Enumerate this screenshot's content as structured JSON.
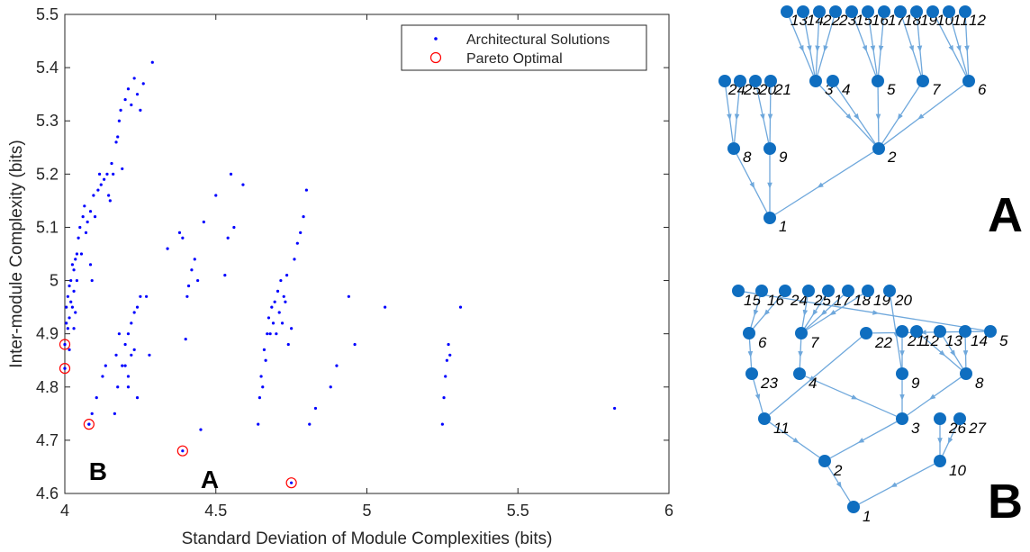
{
  "chart_data": {
    "type": "scatter",
    "xlabel": "Standard Deviation of Module Complexities (bits)",
    "ylabel": "Inter-module Complexity (bits)",
    "xlim": [
      4,
      6
    ],
    "ylim": [
      4.6,
      5.5
    ],
    "xticks": [
      "4",
      "4.5",
      "5",
      "5.5",
      "6"
    ],
    "yticks": [
      "4.6",
      "4.7",
      "4.8",
      "4.9",
      "5",
      "5.1",
      "5.2",
      "5.3",
      "5.4",
      "5.5"
    ],
    "legend_position": "top-right",
    "grid": false,
    "series": [
      {
        "name": "Architectural Solutions",
        "color": "#0000ff",
        "marker": "dot",
        "points": [
          [
            4.0,
            4.88
          ],
          [
            4.0,
            4.835
          ],
          [
            4.005,
            4.92
          ],
          [
            4.005,
            4.95
          ],
          [
            4.01,
            4.91
          ],
          [
            4.01,
            4.97
          ],
          [
            4.015,
            4.99
          ],
          [
            4.015,
            4.93
          ],
          [
            4.015,
            4.87
          ],
          [
            4.02,
            5.0
          ],
          [
            4.02,
            4.96
          ],
          [
            4.025,
            5.03
          ],
          [
            4.025,
            4.95
          ],
          [
            4.03,
            4.91
          ],
          [
            4.03,
            5.02
          ],
          [
            4.03,
            4.98
          ],
          [
            4.035,
            5.04
          ],
          [
            4.035,
            4.94
          ],
          [
            4.04,
            5.05
          ],
          [
            4.04,
            5.0
          ],
          [
            4.045,
            5.08
          ],
          [
            4.05,
            5.1
          ],
          [
            4.055,
            5.05
          ],
          [
            4.06,
            5.12
          ],
          [
            4.065,
            5.14
          ],
          [
            4.07,
            5.09
          ],
          [
            4.075,
            5.11
          ],
          [
            4.08,
            4.73
          ],
          [
            4.085,
            5.13
          ],
          [
            4.085,
            5.03
          ],
          [
            4.09,
            5.0
          ],
          [
            4.09,
            4.75
          ],
          [
            4.095,
            5.16
          ],
          [
            4.1,
            5.12
          ],
          [
            4.105,
            4.78
          ],
          [
            4.11,
            5.17
          ],
          [
            4.115,
            5.2
          ],
          [
            4.12,
            5.18
          ],
          [
            4.125,
            4.82
          ],
          [
            4.13,
            5.19
          ],
          [
            4.135,
            4.84
          ],
          [
            4.14,
            5.2
          ],
          [
            4.145,
            5.16
          ],
          [
            4.15,
            5.15
          ],
          [
            4.155,
            5.22
          ],
          [
            4.16,
            5.2
          ],
          [
            4.165,
            4.75
          ],
          [
            4.17,
            5.26
          ],
          [
            4.175,
            5.27
          ],
          [
            4.175,
            4.8
          ],
          [
            4.18,
            5.3
          ],
          [
            4.185,
            5.32
          ],
          [
            4.19,
            5.21
          ],
          [
            4.2,
            5.34
          ],
          [
            4.21,
            5.36
          ],
          [
            4.22,
            5.33
          ],
          [
            4.23,
            5.38
          ],
          [
            4.24,
            5.35
          ],
          [
            4.25,
            5.32
          ],
          [
            4.26,
            5.37
          ],
          [
            4.29,
            5.41
          ],
          [
            4.17,
            4.86
          ],
          [
            4.18,
            4.9
          ],
          [
            4.19,
            4.84
          ],
          [
            4.2,
            4.88
          ],
          [
            4.21,
            4.8
          ],
          [
            4.22,
            4.92
          ],
          [
            4.23,
            4.87
          ],
          [
            4.24,
            4.95
          ],
          [
            4.25,
            4.97
          ],
          [
            4.27,
            4.97
          ],
          [
            4.28,
            4.86
          ],
          [
            4.21,
            4.82
          ],
          [
            4.24,
            4.78
          ],
          [
            4.2,
            4.84
          ],
          [
            4.22,
            4.86
          ],
          [
            4.23,
            4.94
          ],
          [
            4.21,
            4.9
          ],
          [
            4.34,
            5.06
          ],
          [
            4.38,
            5.09
          ],
          [
            4.39,
            5.08
          ],
          [
            4.4,
            4.89
          ],
          [
            4.405,
            4.97
          ],
          [
            4.41,
            4.99
          ],
          [
            4.42,
            5.02
          ],
          [
            4.43,
            5.04
          ],
          [
            4.44,
            5.0
          ],
          [
            4.45,
            4.72
          ],
          [
            4.46,
            5.11
          ],
          [
            4.5,
            5.16
          ],
          [
            4.53,
            5.01
          ],
          [
            4.54,
            5.08
          ],
          [
            4.55,
            5.2
          ],
          [
            4.56,
            5.1
          ],
          [
            4.59,
            5.18
          ],
          [
            4.64,
            4.73
          ],
          [
            4.645,
            4.78
          ],
          [
            4.65,
            4.82
          ],
          [
            4.655,
            4.8
          ],
          [
            4.66,
            4.87
          ],
          [
            4.665,
            4.85
          ],
          [
            4.67,
            4.9
          ],
          [
            4.675,
            4.93
          ],
          [
            4.68,
            4.9
          ],
          [
            4.685,
            4.95
          ],
          [
            4.69,
            4.92
          ],
          [
            4.695,
            4.96
          ],
          [
            4.7,
            4.9
          ],
          [
            4.705,
            4.98
          ],
          [
            4.71,
            4.94
          ],
          [
            4.715,
            5.0
          ],
          [
            4.72,
            4.92
          ],
          [
            4.725,
            4.97
          ],
          [
            4.73,
            4.96
          ],
          [
            4.735,
            5.01
          ],
          [
            4.74,
            4.88
          ],
          [
            4.75,
            4.91
          ],
          [
            4.76,
            5.04
          ],
          [
            4.77,
            5.07
          ],
          [
            4.78,
            5.09
          ],
          [
            4.79,
            5.12
          ],
          [
            4.8,
            5.17
          ],
          [
            4.81,
            4.73
          ],
          [
            4.83,
            4.76
          ],
          [
            4.88,
            4.8
          ],
          [
            4.9,
            4.84
          ],
          [
            4.94,
            4.97
          ],
          [
            4.96,
            4.88
          ],
          [
            5.06,
            4.95
          ],
          [
            5.25,
            4.73
          ],
          [
            5.255,
            4.78
          ],
          [
            5.26,
            4.82
          ],
          [
            5.265,
            4.85
          ],
          [
            5.27,
            4.88
          ],
          [
            5.275,
            4.86
          ],
          [
            5.31,
            4.95
          ],
          [
            5.82,
            4.76
          ]
        ]
      },
      {
        "name": "Pareto Optimal",
        "color": "#ff0000",
        "marker": "circle",
        "points": [
          [
            4.0,
            4.88
          ],
          [
            4.0,
            4.835
          ],
          [
            4.08,
            4.73
          ],
          [
            4.39,
            4.68
          ],
          [
            4.75,
            4.62
          ]
        ]
      }
    ],
    "annotations": [
      {
        "text": "B",
        "x": 4.11,
        "y": 4.625
      },
      {
        "text": "A",
        "x": 4.48,
        "y": 4.61
      }
    ]
  },
  "trees": {
    "A": {
      "label": "A",
      "node_color": "#0f6ec0",
      "edge_color": "#6fa8dc",
      "labels": [
        "13",
        "14",
        "22",
        "23",
        "15",
        "16",
        "17",
        "18",
        "19",
        "10",
        "11",
        "12",
        "24",
        "25",
        "20",
        "21",
        "3",
        "4",
        "5",
        "7",
        "6",
        "8",
        "9",
        "2",
        "1"
      ],
      "edges": [
        [
          0,
          16
        ],
        [
          1,
          16
        ],
        [
          2,
          16
        ],
        [
          3,
          16
        ],
        [
          4,
          18
        ],
        [
          5,
          18
        ],
        [
          6,
          18
        ],
        [
          7,
          19
        ],
        [
          8,
          19
        ],
        [
          9,
          20
        ],
        [
          10,
          20
        ],
        [
          11,
          20
        ],
        [
          12,
          21
        ],
        [
          13,
          21
        ],
        [
          14,
          22
        ],
        [
          15,
          22
        ],
        [
          16,
          23
        ],
        [
          17,
          23
        ],
        [
          18,
          23
        ],
        [
          19,
          23
        ],
        [
          20,
          23
        ],
        [
          21,
          24
        ],
        [
          22,
          24
        ],
        [
          23,
          24
        ]
      ]
    },
    "B": {
      "label": "B",
      "node_color": "#0f6ec0",
      "edge_color": "#6fa8dc",
      "labels": [
        "15",
        "16",
        "24",
        "25",
        "17",
        "18",
        "19",
        "20",
        "21",
        "12",
        "13",
        "14",
        "5",
        "6",
        "7",
        "22",
        "23",
        "4",
        "9",
        "8",
        "11",
        "3",
        "26",
        "27",
        "2",
        "10",
        "1"
      ],
      "edges": [
        [
          0,
          12
        ],
        [
          1,
          13
        ],
        [
          2,
          13
        ],
        [
          3,
          14
        ],
        [
          4,
          14
        ],
        [
          5,
          14
        ],
        [
          6,
          14
        ],
        [
          7,
          18
        ],
        [
          8,
          18
        ],
        [
          9,
          19
        ],
        [
          10,
          19
        ],
        [
          11,
          19
        ],
        [
          12,
          15
        ],
        [
          13,
          16
        ],
        [
          14,
          17
        ],
        [
          15,
          20
        ],
        [
          16,
          20
        ],
        [
          17,
          21
        ],
        [
          18,
          21
        ],
        [
          19,
          21
        ],
        [
          20,
          24
        ],
        [
          21,
          24
        ],
        [
          22,
          25
        ],
        [
          23,
          25
        ],
        [
          25,
          26
        ],
        [
          24,
          26
        ]
      ]
    }
  }
}
